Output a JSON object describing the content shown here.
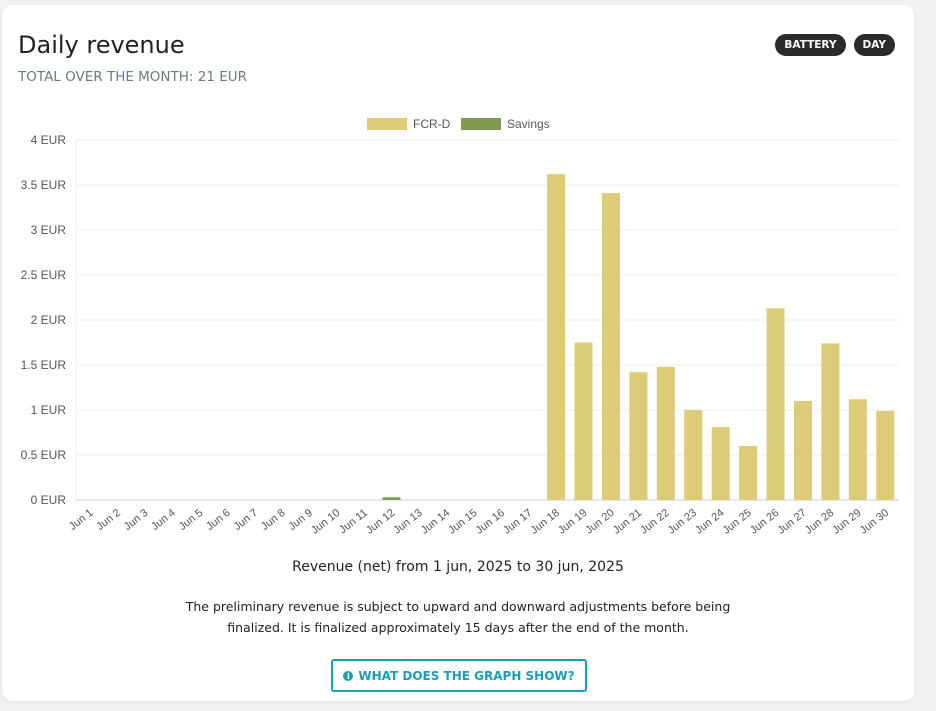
{
  "header": {
    "title": "Daily revenue",
    "subtitle": "TOTAL OVER THE MONTH: 21 EUR",
    "badges": [
      "BATTERY",
      "DAY"
    ]
  },
  "colors": {
    "fcr_d": "#dccb77",
    "savings": "#7f9a52",
    "grid": "#ececec",
    "axis": "#cccccc",
    "tick_text": "#555555",
    "button": "#1b9db3"
  },
  "chart_data": {
    "type": "bar",
    "legend_position": "top-center",
    "grid": true,
    "ylim": [
      0,
      4
    ],
    "yticks": [
      "0 EUR",
      "0.5 EUR",
      "1 EUR",
      "1.5 EUR",
      "2 EUR",
      "2.5 EUR",
      "3 EUR",
      "3.5 EUR",
      "4 EUR"
    ],
    "categories": [
      "Jun 1",
      "Jun 2",
      "Jun 3",
      "Jun 4",
      "Jun 5",
      "Jun 6",
      "Jun 7",
      "Jun 8",
      "Jun 9",
      "Jun 10",
      "Jun 11",
      "Jun 12",
      "Jun 13",
      "Jun 14",
      "Jun 15",
      "Jun 16",
      "Jun 17",
      "Jun 18",
      "Jun 19",
      "Jun 20",
      "Jun 21",
      "Jun 22",
      "Jun 23",
      "Jun 24",
      "Jun 25",
      "Jun 26",
      "Jun 27",
      "Jun 28",
      "Jun 29",
      "Jun 30"
    ],
    "series": [
      {
        "name": "FCR-D",
        "values": [
          0,
          0,
          0,
          0,
          0,
          0,
          0,
          0,
          0,
          0,
          0,
          0,
          0,
          0,
          0,
          0,
          0,
          3.62,
          1.75,
          3.41,
          1.42,
          1.48,
          1.0,
          0.81,
          0.6,
          2.13,
          1.1,
          1.74,
          1.12,
          0.99
        ]
      },
      {
        "name": "Savings",
        "values": [
          0,
          0,
          0,
          0,
          0,
          0,
          0,
          0,
          0,
          0,
          0,
          0.03,
          0,
          0,
          0,
          0,
          0,
          0,
          0,
          0,
          0,
          0,
          0,
          0,
          0,
          0,
          0,
          0,
          0,
          0
        ]
      }
    ],
    "xlabel": "Revenue (net) from 1 jun, 2025 to 30 jun, 2025"
  },
  "footer": {
    "note": "The preliminary revenue is subject to upward and downward adjustments before being finalized. It is finalized approximately 15 days after the end of the month.",
    "help_button": "WHAT DOES THE GRAPH SHOW?",
    "help_icon": "info-icon"
  }
}
